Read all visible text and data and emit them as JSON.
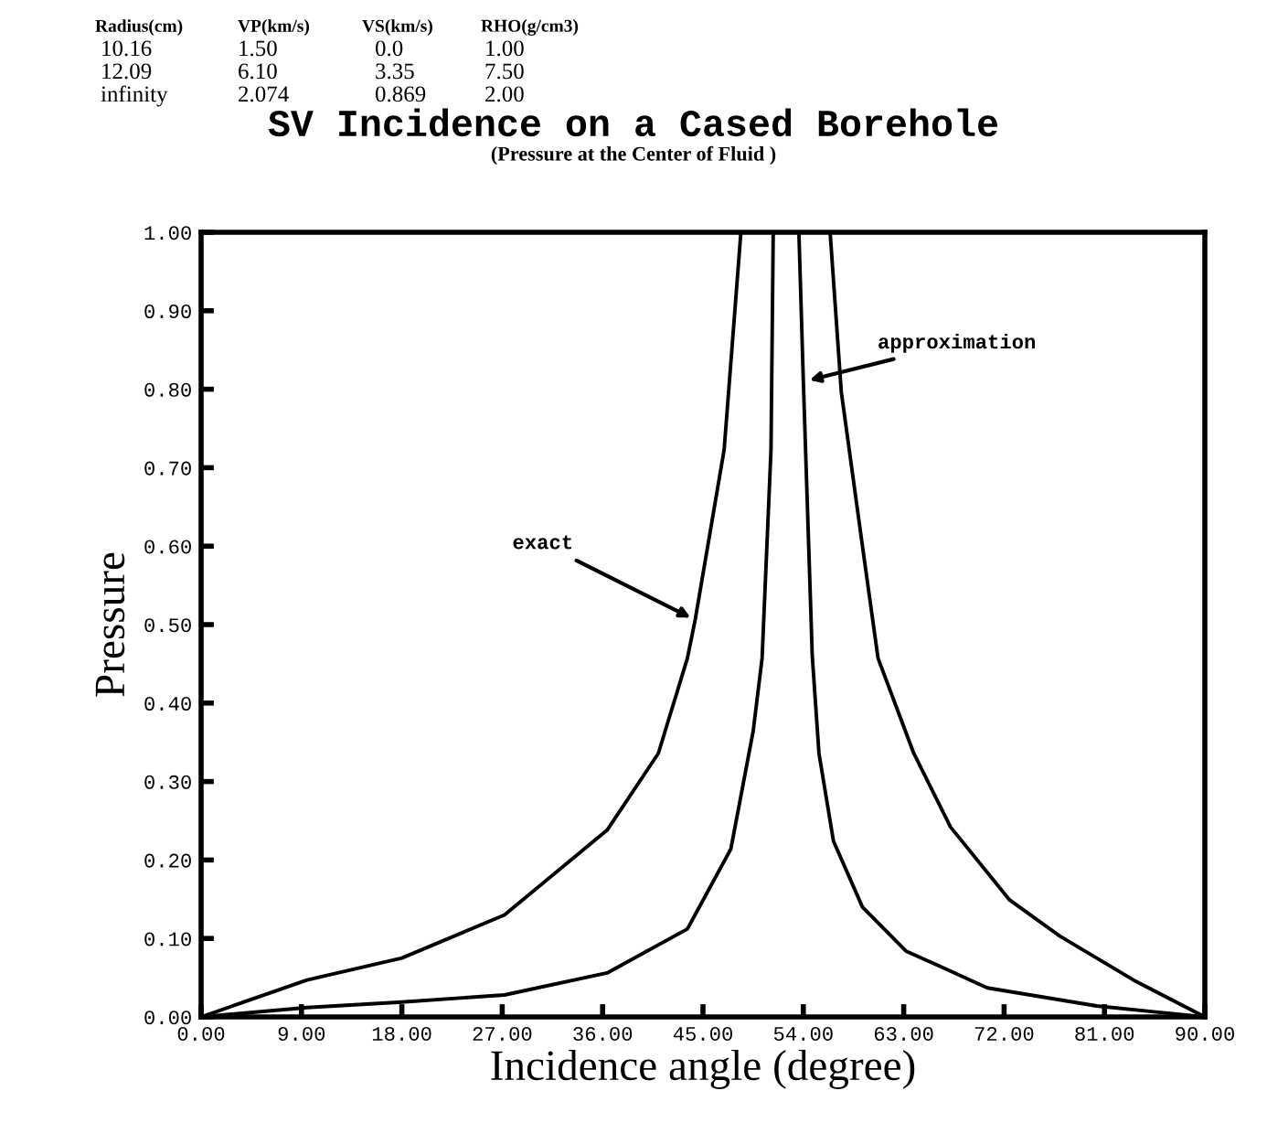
{
  "chart_data": {
    "type": "line",
    "title": "SV Incidence on a Cased Borehole",
    "subtitle": "(Pressure at the Center of Fluid )",
    "xlabel": "Incidence angle (degree)",
    "ylabel": "Pressure",
    "annotations": [
      "Radius(cm)",
      "VP(km/s)",
      "VS(km/s)",
      "RHO(g/cm3)",
      "10.16",
      "1.50",
      "0.0",
      "1.00",
      "12.09",
      "6.10",
      "3.35",
      "7.50",
      "infinity",
      "2.074",
      "0.869",
      "2.00",
      {
        "text": "exact",
        "x": 44.3,
        "y": 0.506
      },
      {
        "text": "approximation",
        "x": 54.1,
        "y": 0.81
      }
    ],
    "series": [
      {
        "color": "#000000",
        "x": [
          0,
          9.5,
          18.0,
          27.2,
          36.4,
          41.0,
          43.6,
          44.3,
          46.9,
          48.4,
          52.4,
          56.4,
          57.4,
          59.3,
          60.7,
          63.9,
          67.2,
          72.5,
          77.0,
          83.6,
          90
        ],
        "values": [
          0,
          0.047,
          0.075,
          0.13,
          0.238,
          0.336,
          0.457,
          0.506,
          0.723,
          1.0,
          null,
          1.0,
          0.797,
          0.6,
          0.457,
          0.336,
          0.242,
          0.149,
          0.103,
          0.047,
          0
        ]
      },
      {
        "color": "#000000",
        "x": [
          0,
          9.5,
          18.0,
          27.2,
          36.4,
          43.6,
          47.5,
          49.5,
          50.3,
          51.1,
          51.3,
          52.4,
          53.6,
          54.0,
          54.8,
          55.4,
          56.7,
          59.3,
          63.2,
          70.5,
          80.3,
          90
        ],
        "values": [
          0,
          0.012,
          0.019,
          0.028,
          0.056,
          0.112,
          0.214,
          0.364,
          0.457,
          0.723,
          1.0,
          null,
          1.0,
          0.81,
          0.46,
          0.336,
          0.224,
          0.14,
          0.084,
          0.037,
          0.014,
          0
        ]
      }
    ],
    "xlim": [
      0,
      90
    ],
    "ylim": [
      0,
      1
    ],
    "xticks": [
      {
        "value": 0,
        "label": "0.00"
      },
      {
        "value": 9,
        "label": "9.00"
      },
      {
        "value": 18,
        "label": "18.00"
      },
      {
        "value": 27,
        "label": "27.00"
      },
      {
        "value": 36,
        "label": "36.00"
      },
      {
        "value": 45,
        "label": "45.00"
      },
      {
        "value": 54,
        "label": "54.00"
      },
      {
        "value": 63,
        "label": "63.00"
      },
      {
        "value": 72,
        "label": "72.00"
      },
      {
        "value": 81,
        "label": "81.00"
      },
      {
        "value": 90,
        "label": "90.00"
      }
    ],
    "yticks": [
      {
        "value": 0,
        "label": "0.00"
      },
      {
        "value": 0.1,
        "label": "0.10"
      },
      {
        "value": 0.2,
        "label": "0.20"
      },
      {
        "value": 0.3,
        "label": "0.30"
      },
      {
        "value": 0.4,
        "label": "0.40"
      },
      {
        "value": 0.5,
        "label": "0.50"
      },
      {
        "value": 0.6,
        "label": "0.60"
      },
      {
        "value": 0.7,
        "label": "0.70"
      },
      {
        "value": 0.8,
        "label": "0.80"
      },
      {
        "value": 0.9,
        "label": "0.90"
      },
      {
        "value": 1.0,
        "label": "1.00"
      }
    ],
    "grid": false,
    "legend": false,
    "marker": "none",
    "line_style": "solid"
  }
}
